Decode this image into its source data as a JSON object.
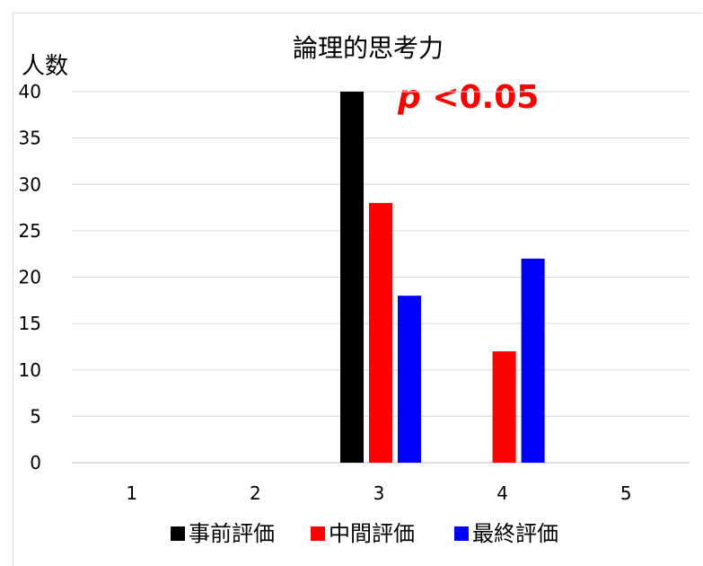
{
  "chart_data": {
    "type": "bar",
    "title": "論理的思考力",
    "ylabel": "人数",
    "xlabel": "",
    "categories": [
      "1",
      "2",
      "3",
      "4",
      "5"
    ],
    "ylim": [
      0,
      40
    ],
    "yticks": [
      "0",
      "5",
      "10",
      "15",
      "20",
      "25",
      "30",
      "35",
      "40"
    ],
    "series": [
      {
        "name": "事前評価",
        "color": "#000000",
        "values": [
          0,
          0,
          40,
          0,
          0
        ]
      },
      {
        "name": "中間評価",
        "color": "#ff0000",
        "values": [
          0,
          0,
          28,
          12,
          0
        ]
      },
      {
        "name": "最終評価",
        "color": "#0000ff",
        "values": [
          0,
          0,
          18,
          22,
          0
        ]
      }
    ],
    "annotation": {
      "p": "p",
      "rest": " <0.05",
      "color": "#ff0000"
    },
    "grid": true,
    "legend_position": "bottom"
  }
}
